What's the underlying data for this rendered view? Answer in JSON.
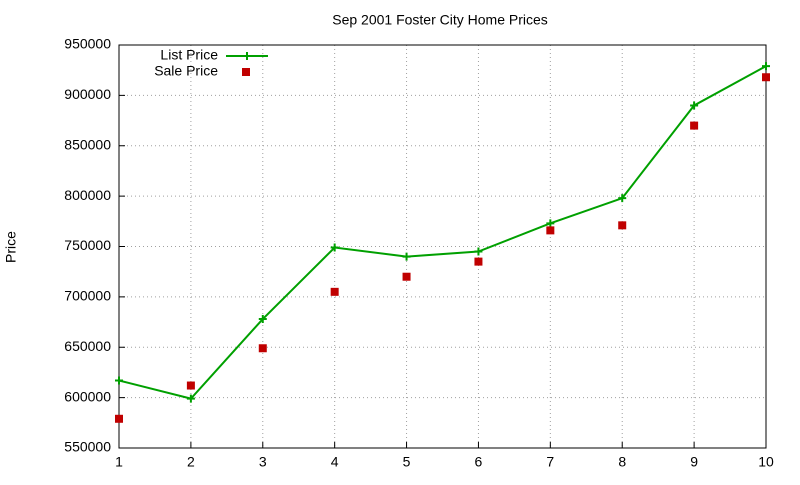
{
  "chart_data": {
    "type": "line",
    "title": "Sep 2001 Foster City Home Prices",
    "y_label": "Price",
    "x": [
      1,
      2,
      3,
      4,
      5,
      6,
      7,
      8,
      9,
      10
    ],
    "series": [
      {
        "name": "List Price",
        "color": "#00a000",
        "style": "linespoints",
        "values": [
          617000,
          599000,
          678000,
          749000,
          740000,
          745000,
          773000,
          798000,
          890000,
          929000
        ]
      },
      {
        "name": "Sale Price",
        "color": "#c00000",
        "style": "points",
        "values": [
          579000,
          612000,
          649000,
          705000,
          720000,
          735000,
          766000,
          771000,
          870000,
          918000
        ]
      }
    ],
    "xlim": [
      1,
      10
    ],
    "xticks": [
      1,
      2,
      3,
      4,
      5,
      6,
      7,
      8,
      9,
      10
    ],
    "ylim": [
      550000,
      950000
    ],
    "yticks": [
      550000,
      600000,
      650000,
      700000,
      750000,
      800000,
      850000,
      900000,
      950000
    ],
    "grid": true,
    "legend": "top-left"
  }
}
